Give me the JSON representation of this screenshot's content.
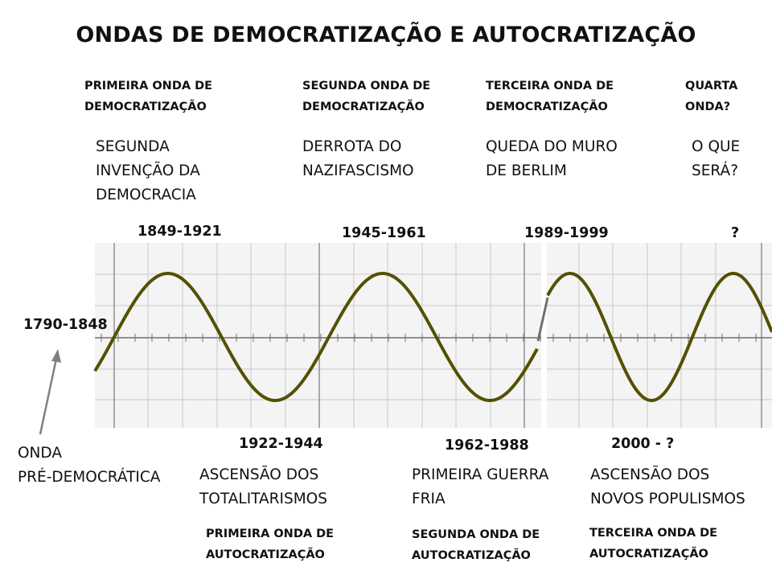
{
  "title": "ONDAS DE DEMOCRATIZAÇÃO E AUTOCRATIZAÇÃO",
  "top_labels": [
    {
      "wave": "PRIMEIRA ONDA DE\nDEMOCRATIZAÇÃO",
      "event": "SEGUNDA\nINVENÇÃO DA\nDEMOCRACIA"
    },
    {
      "wave": "SEGUNDA ONDA DE\nDEMOCRATIZAÇÃO",
      "event": "DERROTA DO\nNAZIFASCISMO"
    },
    {
      "wave": "TERCEIRA ONDA DE\nDEMOCRATIZAÇÃO",
      "event": "QUEDA DO MURO\nDE BERLIM"
    },
    {
      "wave": "QUARTA\nONDA?",
      "event": "O QUE\nSERÁ?"
    }
  ],
  "peaks": [
    "1849-1921",
    "1945-1961",
    "1989-1999",
    "?"
  ],
  "start_period": "1790-1848",
  "start_label": "ONDA\nPRÉ-DEMOCRÁTICA",
  "troughs": [
    "1922-1944",
    "1962-1988",
    "2000 - ?"
  ],
  "bottom_labels": [
    {
      "event": "ASCENSÃO DOS\nTOTALITARISMOS",
      "wave": "PRIMEIRA ONDA DE\nAUTOCRATIZAÇÃO"
    },
    {
      "event": "PRIMEIRA GUERRA\nFRIA",
      "wave": "SEGUNDA ONDA DE\nAUTOCRATIZAÇÃO"
    },
    {
      "event": "ASCENSÃO DOS\nNOVOS POPULISMOS",
      "wave": "TERCEIRA ONDA DE\nAUTOCRATIZAÇÃO"
    }
  ],
  "colors": {
    "wave": "#545000",
    "arrow": "#808080",
    "grid_major": "#909090",
    "grid_minor": "#c8c8c8",
    "background": "#ffffff"
  }
}
